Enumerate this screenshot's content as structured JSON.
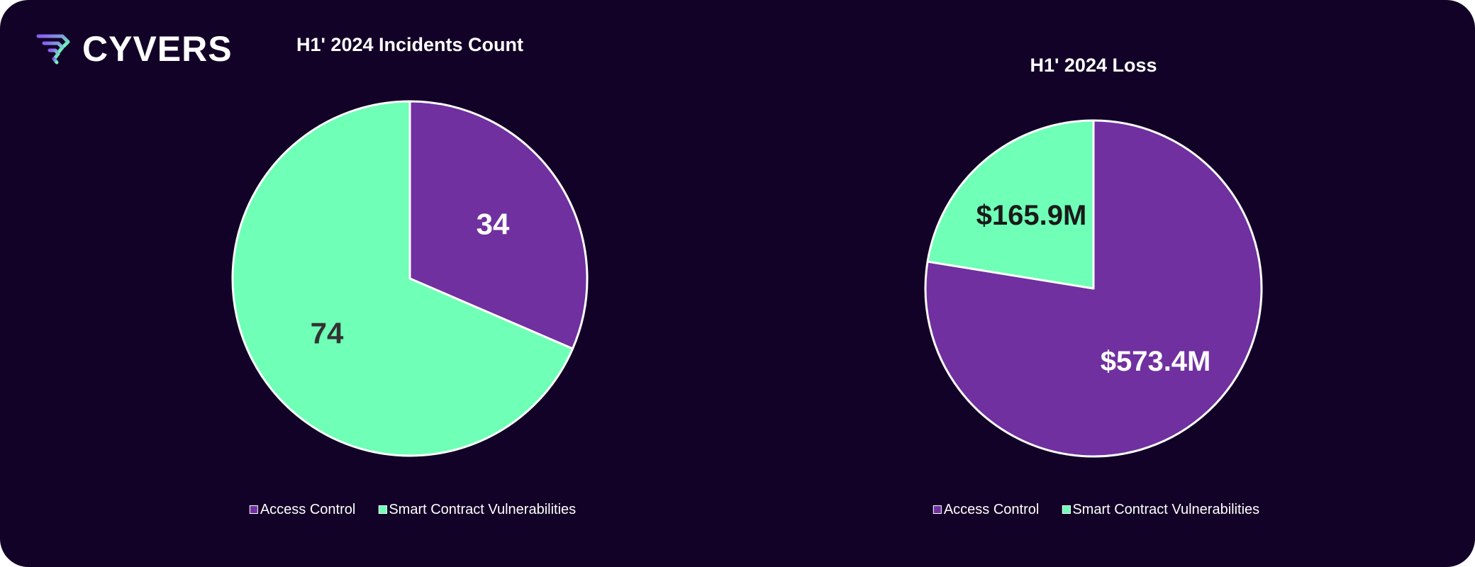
{
  "brand": {
    "name": "CYVERS",
    "logo_icon": "cyvers-logo-icon"
  },
  "colors": {
    "background": "#130227",
    "access_control": "#7030A0",
    "smart_contract": "#6FFFB6",
    "slice_border": "#ffffff"
  },
  "chart_data": [
    {
      "type": "pie",
      "title": "H1' 2024 Incidents Count",
      "categories": [
        "Access Control",
        "Smart Contract Vulnerabilities"
      ],
      "values": [
        34,
        74
      ],
      "data_labels": [
        "34",
        "74"
      ],
      "label_colors": [
        "#ffffff",
        "#333333"
      ],
      "legend": "bottom"
    },
    {
      "type": "pie",
      "title": "H1' 2024 Loss",
      "categories": [
        "Access Control",
        "Smart Contract Vulnerabilities"
      ],
      "values": [
        573.4,
        165.9
      ],
      "unit": "$M",
      "data_labels": [
        "$573.4M",
        "$165.9M"
      ],
      "label_colors": [
        "#ffffff",
        "#1a1a1a"
      ],
      "legend": "bottom"
    }
  ]
}
